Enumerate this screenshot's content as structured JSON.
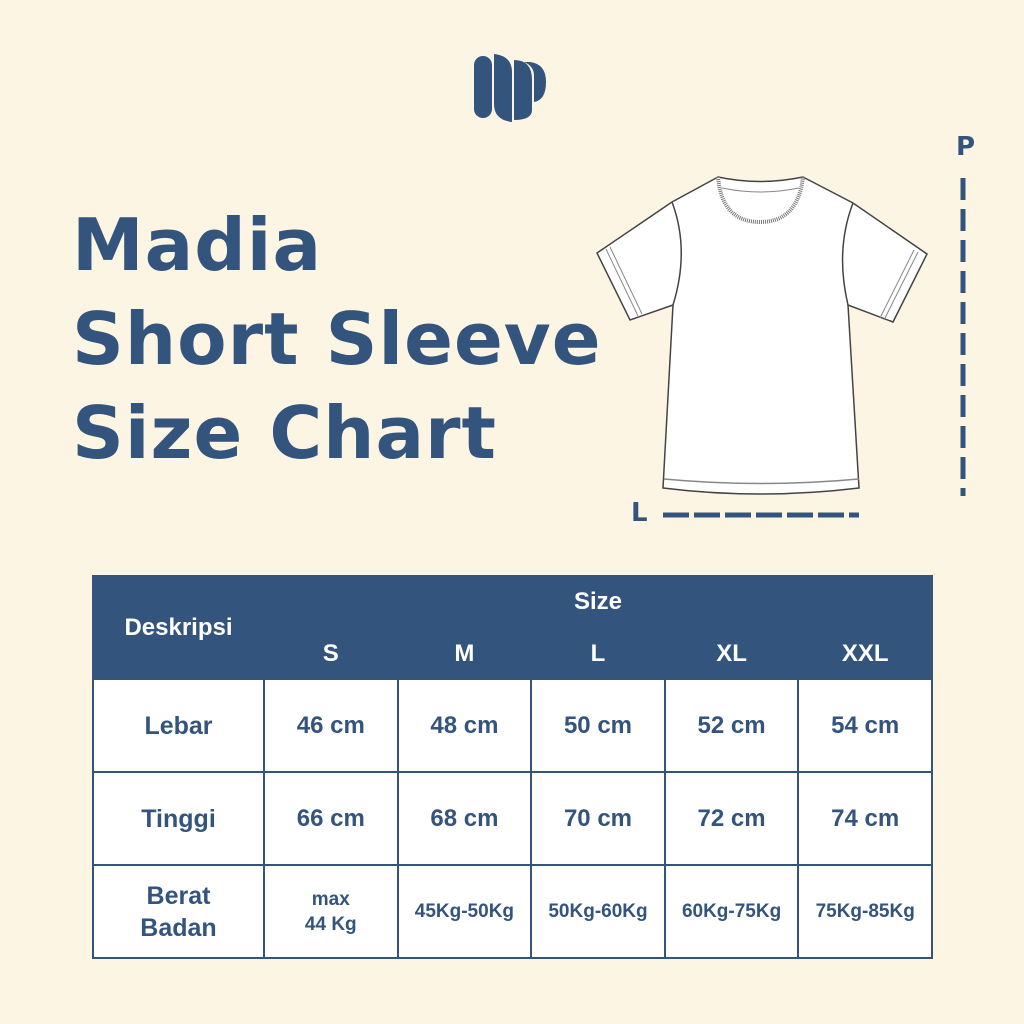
{
  "brand": {
    "logo": "MP monogram",
    "color": "#33547d",
    "background": "#fdf5e4"
  },
  "title": {
    "line1": "Madia",
    "line2": "Short Sleeve",
    "line3": "Size Chart"
  },
  "diagram": {
    "length_label": "P",
    "width_label": "L"
  },
  "table": {
    "desc_header": "Deskripsi",
    "size_header": "Size",
    "sizes": [
      "S",
      "M",
      "L",
      "XL",
      "XXL"
    ],
    "rows": [
      {
        "label": "Lebar",
        "values": [
          "46 cm",
          "48 cm",
          "50 cm",
          "52 cm",
          "54 cm"
        ]
      },
      {
        "label": "Tinggi",
        "values": [
          "66 cm",
          "68 cm",
          "70 cm",
          "72 cm",
          "74 cm"
        ]
      },
      {
        "label_line1": "Berat",
        "label_line2": "Badan",
        "first_line1": "max",
        "first_line2": "44 Kg",
        "values": [
          "max 44 Kg",
          "45Kg-50Kg",
          "50Kg-60Kg",
          "60Kg-75Kg",
          "75Kg-85Kg"
        ]
      }
    ]
  }
}
